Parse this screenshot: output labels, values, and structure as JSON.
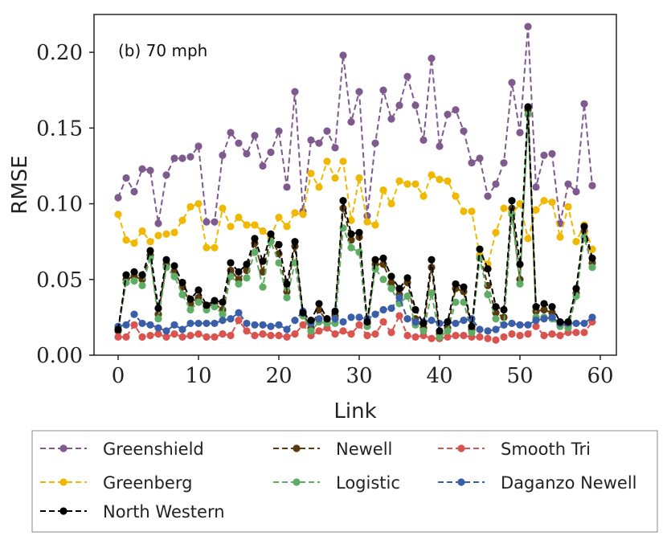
{
  "chart_data": {
    "type": "line",
    "title": "",
    "annotation": "(b) 70 mph",
    "xlabel": "Link",
    "ylabel": "RMSE",
    "xlim": [
      -3,
      62
    ],
    "ylim": [
      0.0,
      0.225
    ],
    "xticks": [
      0,
      10,
      20,
      30,
      40,
      50,
      60
    ],
    "xtick_labels": [
      "0",
      "10",
      "20",
      "30",
      "40",
      "50",
      "60"
    ],
    "yticks": [
      0.0,
      0.05,
      0.1,
      0.15,
      0.2
    ],
    "ytick_labels": [
      "0.00",
      "0.05",
      "0.10",
      "0.15",
      "0.20"
    ],
    "grid": false,
    "legend_position": "below",
    "x": [
      0,
      1,
      2,
      3,
      4,
      5,
      6,
      7,
      8,
      9,
      10,
      11,
      12,
      13,
      14,
      15,
      16,
      17,
      18,
      19,
      20,
      21,
      22,
      23,
      24,
      25,
      26,
      27,
      28,
      29,
      30,
      31,
      32,
      33,
      34,
      35,
      36,
      37,
      38,
      39,
      40,
      41,
      42,
      43,
      44,
      45,
      46,
      47,
      48,
      49,
      50,
      51,
      52,
      53,
      54,
      55,
      56,
      57,
      58,
      59
    ],
    "series": [
      {
        "name": "Greenshield",
        "color": "#7f5a8e",
        "values": [
          0.104,
          0.117,
          0.108,
          0.123,
          0.122,
          0.087,
          0.119,
          0.13,
          0.13,
          0.131,
          0.138,
          0.088,
          0.088,
          0.132,
          0.147,
          0.14,
          0.133,
          0.145,
          0.125,
          0.134,
          0.148,
          0.111,
          0.174,
          0.095,
          0.142,
          0.14,
          0.148,
          0.137,
          0.198,
          0.154,
          0.174,
          0.092,
          0.14,
          0.175,
          0.156,
          0.165,
          0.184,
          0.165,
          0.142,
          0.196,
          0.138,
          0.159,
          0.162,
          0.148,
          0.127,
          0.13,
          0.105,
          0.113,
          0.127,
          0.18,
          0.147,
          0.217,
          0.111,
          0.132,
          0.133,
          0.087,
          0.113,
          0.108,
          0.166,
          0.112
        ]
      },
      {
        "name": "Newell",
        "color": "#5a3a0d",
        "values": [
          0.016,
          0.05,
          0.052,
          0.05,
          0.066,
          0.027,
          0.06,
          0.055,
          0.045,
          0.034,
          0.038,
          0.032,
          0.034,
          0.03,
          0.056,
          0.05,
          0.056,
          0.074,
          0.055,
          0.078,
          0.067,
          0.042,
          0.072,
          0.027,
          0.018,
          0.03,
          0.022,
          0.026,
          0.097,
          0.076,
          0.078,
          0.021,
          0.06,
          0.06,
          0.048,
          0.04,
          0.048,
          0.024,
          0.018,
          0.058,
          0.014,
          0.018,
          0.044,
          0.042,
          0.017,
          0.066,
          0.046,
          0.028,
          0.025,
          0.097,
          0.05,
          0.162,
          0.029,
          0.03,
          0.028,
          0.02,
          0.02,
          0.041,
          0.082,
          0.061
        ]
      },
      {
        "name": "Smooth Tri",
        "color": "#d9534f",
        "values": [
          0.012,
          0.012,
          0.02,
          0.012,
          0.013,
          0.014,
          0.012,
          0.014,
          0.012,
          0.013,
          0.014,
          0.012,
          0.012,
          0.014,
          0.013,
          0.023,
          0.016,
          0.013,
          0.014,
          0.013,
          0.013,
          0.012,
          0.014,
          0.02,
          0.013,
          0.016,
          0.018,
          0.014,
          0.016,
          0.014,
          0.02,
          0.013,
          0.014,
          0.022,
          0.015,
          0.026,
          0.013,
          0.012,
          0.013,
          0.011,
          0.011,
          0.012,
          0.013,
          0.013,
          0.012,
          0.012,
          0.011,
          0.01,
          0.012,
          0.014,
          0.013,
          0.014,
          0.019,
          0.013,
          0.014,
          0.013,
          0.015,
          0.015,
          0.015,
          0.022
        ]
      },
      {
        "name": "Greenberg",
        "color": "#f0b800",
        "values": [
          0.093,
          0.076,
          0.074,
          0.082,
          0.075,
          0.079,
          0.08,
          0.081,
          0.089,
          0.098,
          0.1,
          0.071,
          0.071,
          0.097,
          0.085,
          0.091,
          0.086,
          0.086,
          0.082,
          0.078,
          0.091,
          0.085,
          0.094,
          0.093,
          0.12,
          0.111,
          0.128,
          0.117,
          0.128,
          0.089,
          0.117,
          0.088,
          0.086,
          0.109,
          0.1,
          0.115,
          0.113,
          0.113,
          0.105,
          0.119,
          0.116,
          0.115,
          0.105,
          0.095,
          0.095,
          0.066,
          0.06,
          0.081,
          0.097,
          0.093,
          0.1,
          0.077,
          0.096,
          0.102,
          0.101,
          0.078,
          0.098,
          0.075,
          0.086,
          0.07
        ]
      },
      {
        "name": "Logistic",
        "color": "#5fad65",
        "values": [
          0.017,
          0.048,
          0.049,
          0.046,
          0.064,
          0.024,
          0.058,
          0.052,
          0.04,
          0.03,
          0.035,
          0.03,
          0.032,
          0.027,
          0.052,
          0.047,
          0.051,
          0.068,
          0.045,
          0.075,
          0.061,
          0.038,
          0.061,
          0.026,
          0.016,
          0.022,
          0.021,
          0.021,
          0.084,
          0.071,
          0.068,
          0.019,
          0.057,
          0.05,
          0.044,
          0.034,
          0.039,
          0.02,
          0.016,
          0.041,
          0.012,
          0.016,
          0.035,
          0.035,
          0.015,
          0.064,
          0.04,
          0.024,
          0.02,
          0.093,
          0.047,
          0.159,
          0.025,
          0.025,
          0.024,
          0.019,
          0.018,
          0.039,
          0.078,
          0.058
        ]
      },
      {
        "name": "Daganzo Newell",
        "color": "#3a5ea8",
        "values": [
          0.019,
          0.02,
          0.027,
          0.021,
          0.02,
          0.018,
          0.016,
          0.02,
          0.017,
          0.021,
          0.021,
          0.021,
          0.021,
          0.023,
          0.024,
          0.028,
          0.021,
          0.02,
          0.02,
          0.019,
          0.02,
          0.017,
          0.023,
          0.029,
          0.021,
          0.024,
          0.024,
          0.024,
          0.022,
          0.025,
          0.025,
          0.024,
          0.027,
          0.03,
          0.031,
          0.038,
          0.024,
          0.022,
          0.022,
          0.023,
          0.021,
          0.022,
          0.021,
          0.023,
          0.024,
          0.017,
          0.016,
          0.017,
          0.02,
          0.021,
          0.02,
          0.02,
          0.023,
          0.024,
          0.025,
          0.021,
          0.021,
          0.021,
          0.021,
          0.025
        ]
      },
      {
        "name": "North Western",
        "color": "#000000",
        "values": [
          0.017,
          0.053,
          0.055,
          0.053,
          0.069,
          0.031,
          0.063,
          0.059,
          0.048,
          0.037,
          0.043,
          0.033,
          0.036,
          0.035,
          0.061,
          0.055,
          0.06,
          0.077,
          0.062,
          0.08,
          0.073,
          0.047,
          0.075,
          0.028,
          0.023,
          0.034,
          0.024,
          0.029,
          0.102,
          0.08,
          0.081,
          0.022,
          0.063,
          0.064,
          0.052,
          0.044,
          0.051,
          0.03,
          0.021,
          0.063,
          0.016,
          0.022,
          0.047,
          0.045,
          0.019,
          0.07,
          0.057,
          0.032,
          0.03,
          0.102,
          0.06,
          0.164,
          0.032,
          0.034,
          0.032,
          0.022,
          0.022,
          0.044,
          0.085,
          0.064
        ]
      }
    ]
  },
  "legend": {
    "entries": [
      {
        "label": "Greenshield",
        "color": "#7f5a8e"
      },
      {
        "label": "Newell",
        "color": "#5a3a0d"
      },
      {
        "label": "Smooth Tri",
        "color": "#d9534f"
      },
      {
        "label": "Greenberg",
        "color": "#f0b800"
      },
      {
        "label": "Logistic",
        "color": "#5fad65"
      },
      {
        "label": "Daganzo Newell",
        "color": "#3a5ea8"
      },
      {
        "label": "North Western",
        "color": "#000000"
      }
    ]
  }
}
